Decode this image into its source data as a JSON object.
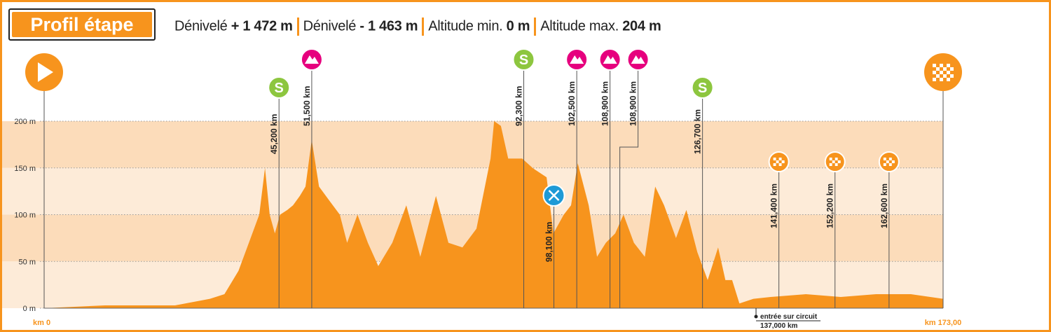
{
  "header": {
    "title": "Profil étape",
    "stats": [
      {
        "label": "Dénivelé",
        "value": "+ 1 472 m"
      },
      {
        "label": "Dénivelé",
        "value": "- 1 463 m"
      },
      {
        "label": "Altitude min.",
        "value": "0 m"
      },
      {
        "label": "Altitude max.",
        "value": "204 m"
      }
    ]
  },
  "chart_data": {
    "type": "area",
    "color": "#f7941d",
    "x": [
      0,
      11.7,
      25.2,
      31.9,
      34.7,
      37.4,
      39.4,
      41.4,
      42.5,
      43.4,
      44.4,
      45.4,
      46.8,
      47.9,
      49.2,
      50.3,
      51.5,
      52.9,
      54.9,
      56.9,
      58.3,
      60.3,
      62.3,
      64.3,
      67.0,
      69.7,
      72.4,
      75.4,
      77.8,
      80.5,
      83.2,
      85.9,
      86.6,
      87.9,
      89.3,
      92.0,
      94.0,
      96.7,
      98.0,
      100.0,
      101.4,
      102.7,
      104.8,
      106.4,
      108.1,
      109.9,
      111.5,
      113.5,
      115.6,
      117.6,
      119.3,
      121.6,
      123.6,
      125.7,
      127.7,
      129.7,
      131.1,
      132.4,
      133.8,
      136.5,
      139.8,
      146.6,
      153.3,
      160.1,
      166.8,
      173
    ],
    "values": [
      0,
      3,
      3,
      10,
      15,
      40,
      70,
      100,
      150,
      100,
      80,
      100,
      105,
      110,
      120,
      130,
      180,
      130,
      115,
      100,
      70,
      100,
      70,
      45,
      70,
      110,
      55,
      120,
      70,
      65,
      85,
      160,
      200,
      195,
      160,
      160,
      150,
      140,
      80,
      100,
      110,
      155,
      110,
      55,
      70,
      80,
      100,
      70,
      55,
      130,
      110,
      75,
      105,
      60,
      30,
      65,
      30,
      30,
      5,
      10,
      12,
      15,
      12,
      15,
      15,
      10
    ],
    "xlim": [
      0,
      173
    ],
    "ylim": [
      0,
      200
    ],
    "yticks": [
      {
        "value": 0,
        "label": "0 m"
      },
      {
        "value": 50,
        "label": "50 m"
      },
      {
        "value": 100,
        "label": "100 m"
      },
      {
        "value": 150,
        "label": "150 m"
      },
      {
        "value": 200,
        "label": "200 m"
      }
    ],
    "x_start_label": "km 0",
    "x_end_label": "km 173,00",
    "sprint_symbol": "S",
    "markers": [
      {
        "km": 45.2,
        "label": "45,200 km",
        "kind": "sprint"
      },
      {
        "km": 51.5,
        "label": "51,500 km",
        "kind": "mountain"
      },
      {
        "km": 92.3,
        "label": "92,300 km",
        "kind": "sprint"
      },
      {
        "km": 98.1,
        "label": "98,100 km",
        "kind": "food"
      },
      {
        "km": 102.5,
        "label": "102,500 km",
        "kind": "mountain"
      },
      {
        "km": 108.9,
        "label": "108,900 km",
        "kind": "mountain"
      },
      {
        "km": 108.9,
        "label": "108,900 km",
        "kind": "mountain"
      },
      {
        "km": 126.7,
        "label": "126,700 km",
        "kind": "sprint"
      },
      {
        "km": 141.4,
        "label": "141,400 km",
        "kind": "flag"
      },
      {
        "km": 152.2,
        "label": "152,200 km",
        "kind": "flag"
      },
      {
        "km": 162.6,
        "label": "162,600 km",
        "kind": "flag"
      }
    ],
    "annotation": {
      "km": 137.0,
      "text": "entrée sur circuit",
      "label": "137,000 km"
    }
  }
}
